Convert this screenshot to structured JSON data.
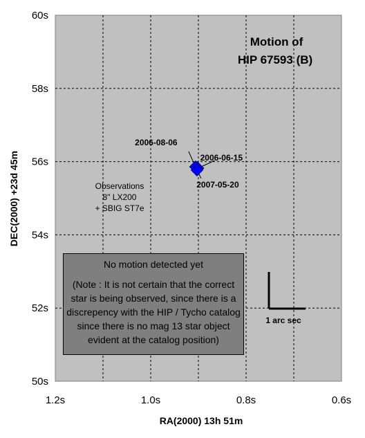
{
  "chart_data": {
    "type": "scatter",
    "title_line1": "Motion of",
    "title_line2": "HIP 67593 (B)",
    "xlabel": "RA(2000) 13h 51m",
    "ylabel": "DEC(2000) +23d 45m",
    "xlim": [
      0.6,
      1.2
    ],
    "x_reversed": true,
    "ylim": [
      50,
      60
    ],
    "x_ticks": [
      1.2,
      1.0,
      0.8,
      0.6
    ],
    "x_tick_labels": [
      "1.2s",
      "1.0s",
      "0.8s",
      "0.6s"
    ],
    "y_ticks": [
      50,
      52,
      54,
      56,
      58,
      60
    ],
    "y_tick_labels": [
      "50s",
      "52s",
      "54s",
      "56s",
      "58s",
      "60s"
    ],
    "grid": true,
    "plot_background": "#c0c0c0",
    "marker_color": "#0000ff",
    "points": [
      {
        "label": "2006-08-06",
        "x": 0.906,
        "y": 55.86
      },
      {
        "label": "2006-06-15",
        "x": 0.901,
        "y": 55.82
      },
      {
        "label": "2007-05-20",
        "x": 0.903,
        "y": 55.77
      }
    ],
    "annotation_observations": [
      "Observations",
      "8\" LX200",
      "+ SBIG ST7e"
    ],
    "scale_bar_label": "1 arc sec",
    "note_heading": "No motion detected yet",
    "note_body": "(Note : It is not certain that the correct star is being observed, since there is a discrepency with the HIP / Tycho catalog since there is no mag 13 star object evident at the catalog position)"
  }
}
